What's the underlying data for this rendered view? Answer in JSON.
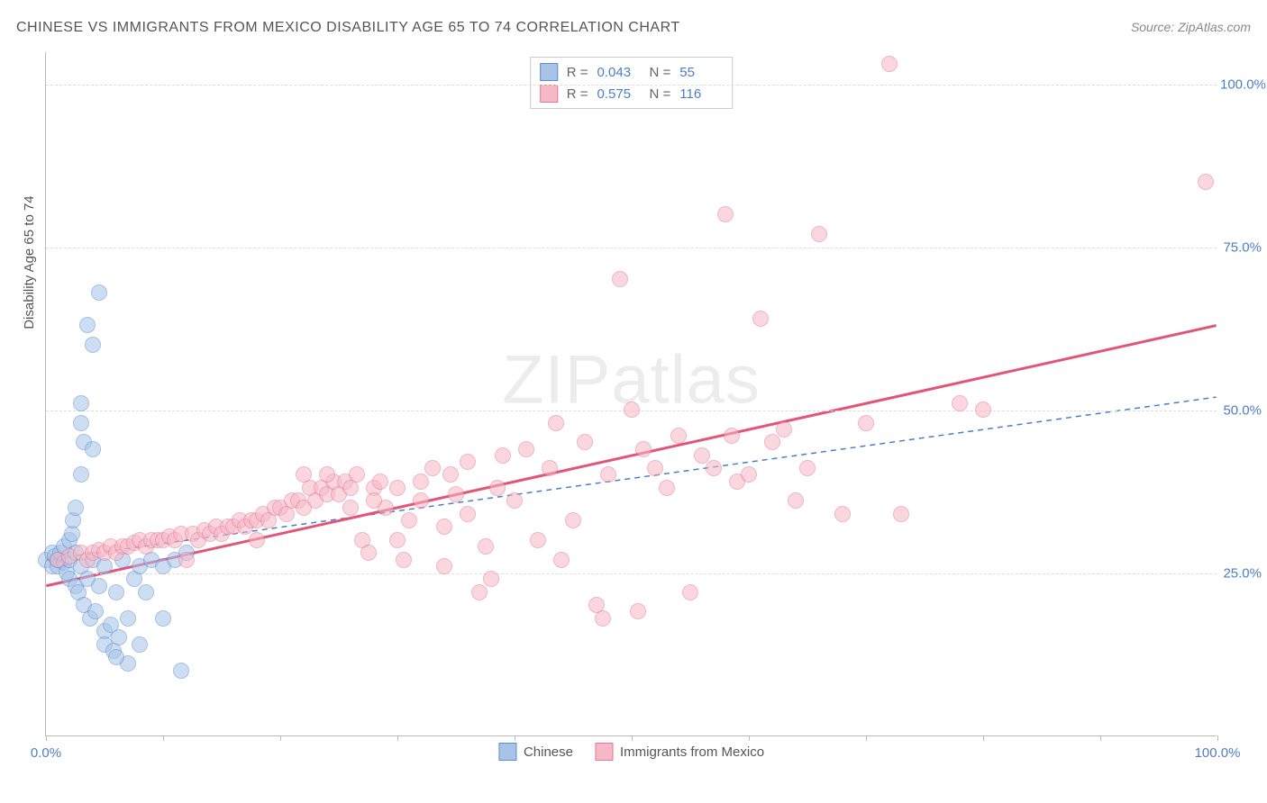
{
  "title": "CHINESE VS IMMIGRANTS FROM MEXICO DISABILITY AGE 65 TO 74 CORRELATION CHART",
  "source_label": "Source: ZipAtlas.com",
  "watermark": "ZIPatlas",
  "chart": {
    "type": "scatter",
    "background_color": "#ffffff",
    "grid_color": "#dddddd",
    "axis_color": "#bbbbbb",
    "tick_label_color": "#4a7ec9",
    "ylabel": "Disability Age 65 to 74",
    "ylabel_fontsize": 15,
    "xlim": [
      0,
      100
    ],
    "ylim": [
      0,
      105
    ],
    "xtick_positions": [
      0,
      10,
      20,
      30,
      40,
      50,
      60,
      70,
      80,
      90,
      100
    ],
    "xtick_labels_shown": {
      "0": "0.0%",
      "100": "100.0%"
    },
    "ytick_positions": [
      25,
      50,
      75,
      100
    ],
    "ytick_labels": [
      "25.0%",
      "50.0%",
      "75.0%",
      "100.0%"
    ],
    "marker_radius": 9,
    "marker_border_width": 1,
    "series": [
      {
        "name": "Chinese",
        "fill_color": "#a7c4e8",
        "fill_opacity": 0.55,
        "border_color": "#5b8fd0",
        "R": "0.043",
        "N": "55",
        "trend": {
          "x1": 0,
          "y1": 27,
          "x2": 100,
          "y2": 52,
          "color": "#4a7ec9",
          "width": 1.5,
          "dash": "6,5"
        },
        "points": [
          [
            0,
            27
          ],
          [
            0.5,
            26
          ],
          [
            0.5,
            28
          ],
          [
            0.8,
            27.5
          ],
          [
            1,
            26
          ],
          [
            1,
            27
          ],
          [
            1.2,
            28
          ],
          [
            1.5,
            26.5
          ],
          [
            1.5,
            29
          ],
          [
            1.8,
            25
          ],
          [
            2,
            27
          ],
          [
            2,
            30
          ],
          [
            2,
            24
          ],
          [
            2.2,
            31
          ],
          [
            2.3,
            33
          ],
          [
            2.5,
            23
          ],
          [
            2.5,
            28
          ],
          [
            2.5,
            35
          ],
          [
            2.8,
            22
          ],
          [
            3,
            26
          ],
          [
            3,
            48
          ],
          [
            3,
            51
          ],
          [
            3.2,
            20
          ],
          [
            3.2,
            45
          ],
          [
            3.5,
            24
          ],
          [
            3.5,
            63
          ],
          [
            3.8,
            18
          ],
          [
            4,
            27
          ],
          [
            4,
            60
          ],
          [
            4.2,
            19
          ],
          [
            4.5,
            68
          ],
          [
            4.5,
            23
          ],
          [
            5,
            26
          ],
          [
            5,
            16
          ],
          [
            5,
            14
          ],
          [
            5.5,
            17
          ],
          [
            5.8,
            13
          ],
          [
            6,
            22
          ],
          [
            6.2,
            15
          ],
          [
            6.5,
            27
          ],
          [
            7,
            18
          ],
          [
            7,
            11
          ],
          [
            7.5,
            24
          ],
          [
            8,
            26
          ],
          [
            8.5,
            22
          ],
          [
            9,
            27
          ],
          [
            10,
            18
          ],
          [
            10,
            26
          ],
          [
            11,
            27
          ],
          [
            11.5,
            10
          ],
          [
            12,
            28
          ],
          [
            8,
            14
          ],
          [
            6,
            12
          ],
          [
            4,
            44
          ],
          [
            3,
            40
          ]
        ]
      },
      {
        "name": "Immigrants from Mexico",
        "fill_color": "#f6b8c6",
        "fill_opacity": 0.55,
        "border_color": "#e47a97",
        "R": "0.575",
        "N": "116",
        "trend": {
          "x1": 0,
          "y1": 23,
          "x2": 100,
          "y2": 63,
          "color": "#e25578",
          "width": 3,
          "dash": null
        },
        "points": [
          [
            1,
            27
          ],
          [
            2,
            27.5
          ],
          [
            3,
            28
          ],
          [
            3.5,
            27
          ],
          [
            4,
            28
          ],
          [
            4.5,
            28.5
          ],
          [
            5,
            28
          ],
          [
            5.5,
            29
          ],
          [
            6,
            28
          ],
          [
            6.5,
            29
          ],
          [
            7,
            29
          ],
          [
            7.5,
            29.5
          ],
          [
            8,
            30
          ],
          [
            8.5,
            29
          ],
          [
            9,
            30
          ],
          [
            9.5,
            30
          ],
          [
            10,
            30
          ],
          [
            10.5,
            30.5
          ],
          [
            11,
            30
          ],
          [
            11.5,
            31
          ],
          [
            12,
            27
          ],
          [
            12.5,
            31
          ],
          [
            13,
            30
          ],
          [
            13.5,
            31.5
          ],
          [
            14,
            31
          ],
          [
            14.5,
            32
          ],
          [
            15,
            31
          ],
          [
            15.5,
            32
          ],
          [
            16,
            32
          ],
          [
            16.5,
            33
          ],
          [
            17,
            32
          ],
          [
            17.5,
            33
          ],
          [
            18,
            33
          ],
          [
            18.5,
            34
          ],
          [
            19,
            33
          ],
          [
            19.5,
            35
          ],
          [
            20,
            35
          ],
          [
            20.5,
            34
          ],
          [
            21,
            36
          ],
          [
            21.5,
            36
          ],
          [
            22,
            35
          ],
          [
            22.5,
            38
          ],
          [
            23,
            36
          ],
          [
            23.5,
            38
          ],
          [
            24,
            37
          ],
          [
            24.5,
            39
          ],
          [
            25,
            37
          ],
          [
            25.5,
            39
          ],
          [
            26,
            38
          ],
          [
            26.5,
            40
          ],
          [
            27,
            30
          ],
          [
            27.5,
            28
          ],
          [
            28,
            38
          ],
          [
            28.5,
            39
          ],
          [
            29,
            35
          ],
          [
            30,
            30
          ],
          [
            30.5,
            27
          ],
          [
            31,
            33
          ],
          [
            32,
            39
          ],
          [
            33,
            41
          ],
          [
            34,
            26
          ],
          [
            34.5,
            40
          ],
          [
            35,
            37
          ],
          [
            36,
            42
          ],
          [
            37,
            22
          ],
          [
            37.5,
            29
          ],
          [
            38,
            24
          ],
          [
            38.5,
            38
          ],
          [
            39,
            43
          ],
          [
            40,
            36
          ],
          [
            41,
            44
          ],
          [
            42,
            30
          ],
          [
            43,
            41
          ],
          [
            43.5,
            48
          ],
          [
            44,
            27
          ],
          [
            45,
            33
          ],
          [
            46,
            45
          ],
          [
            47,
            20
          ],
          [
            47.5,
            18
          ],
          [
            48,
            40
          ],
          [
            49,
            70
          ],
          [
            50,
            50
          ],
          [
            50.5,
            19
          ],
          [
            51,
            44
          ],
          [
            52,
            41
          ],
          [
            53,
            38
          ],
          [
            54,
            46
          ],
          [
            55,
            22
          ],
          [
            56,
            43
          ],
          [
            57,
            41
          ],
          [
            58,
            80
          ],
          [
            58.5,
            46
          ],
          [
            59,
            39
          ],
          [
            60,
            40
          ],
          [
            61,
            64
          ],
          [
            62,
            45
          ],
          [
            63,
            47
          ],
          [
            64,
            36
          ],
          [
            65,
            41
          ],
          [
            66,
            77
          ],
          [
            68,
            34
          ],
          [
            70,
            48
          ],
          [
            72,
            103
          ],
          [
            73,
            34
          ],
          [
            78,
            51
          ],
          [
            80,
            50
          ],
          [
            99,
            85
          ],
          [
            22,
            40
          ],
          [
            24,
            40
          ],
          [
            26,
            35
          ],
          [
            28,
            36
          ],
          [
            30,
            38
          ],
          [
            32,
            36
          ],
          [
            34,
            32
          ],
          [
            36,
            34
          ],
          [
            18,
            30
          ]
        ]
      }
    ]
  }
}
